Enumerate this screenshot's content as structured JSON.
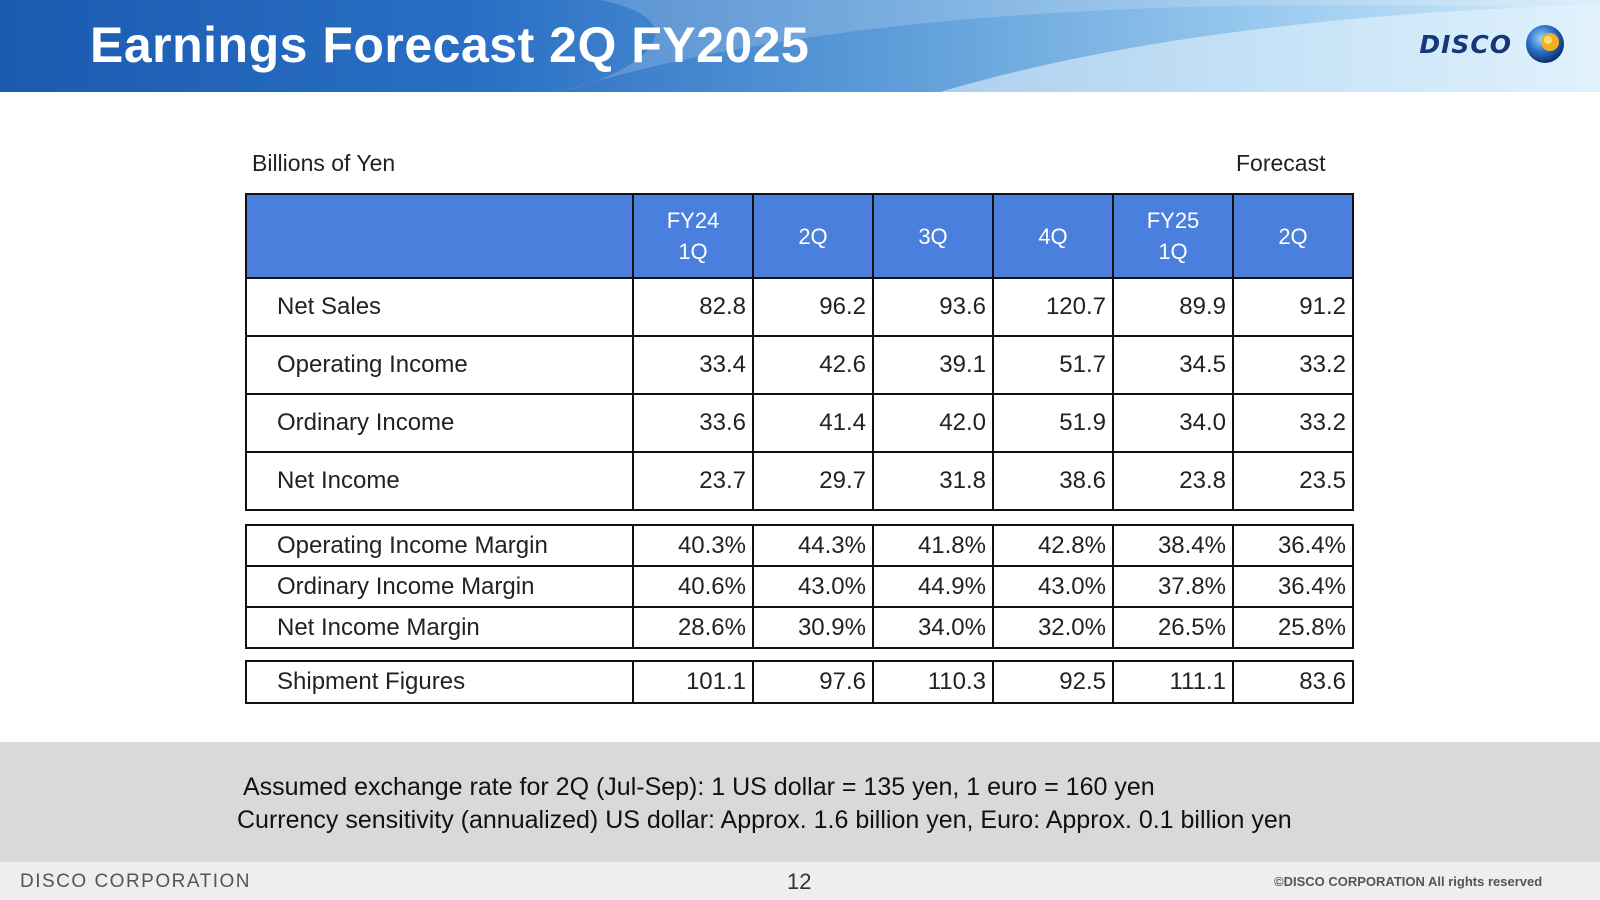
{
  "header": {
    "title": "Earnings Forecast 2Q FY2025",
    "logo_text": "DISCO",
    "logo_icon": "disco-globe-logo-icon"
  },
  "table": {
    "units": "Billions of Yen",
    "forecast_label": "Forecast",
    "columns": [
      {
        "line1": "FY24",
        "line2": "1Q"
      },
      {
        "line1": "2Q",
        "line2": ""
      },
      {
        "line1": "3Q",
        "line2": ""
      },
      {
        "line1": "4Q",
        "line2": ""
      },
      {
        "line1": "FY25",
        "line2": "1Q"
      },
      {
        "line1": "2Q",
        "line2": ""
      }
    ],
    "main_rows": [
      {
        "label": "Net Sales",
        "values": [
          "82.8",
          "96.2",
          "93.6",
          "120.7",
          "89.9",
          "91.2"
        ]
      },
      {
        "label": "Operating Income",
        "values": [
          "33.4",
          "42.6",
          "39.1",
          "51.7",
          "34.5",
          "33.2"
        ]
      },
      {
        "label": "Ordinary Income",
        "values": [
          "33.6",
          "41.4",
          "42.0",
          "51.9",
          "34.0",
          "33.2"
        ]
      },
      {
        "label": "Net Income",
        "values": [
          "23.7",
          "29.7",
          "31.8",
          "38.6",
          "23.8",
          "23.5"
        ]
      }
    ],
    "margin_rows": [
      {
        "label": "Operating Income Margin",
        "values": [
          "40.3%",
          "44.3%",
          "41.8%",
          "42.8%",
          "38.4%",
          "36.4%"
        ]
      },
      {
        "label": "Ordinary Income Margin",
        "values": [
          "40.6%",
          "43.0%",
          "44.9%",
          "43.0%",
          "37.8%",
          "36.4%"
        ]
      },
      {
        "label": "Net Income Margin",
        "values": [
          "28.6%",
          "30.9%",
          "34.0%",
          "32.0%",
          "26.5%",
          "25.8%"
        ]
      }
    ],
    "shipment_row": {
      "label": "Shipment Figures",
      "values": [
        "101.1",
        "97.6",
        "110.3",
        "92.5",
        "111.1",
        "83.6"
      ]
    }
  },
  "notes": {
    "line1": "Assumed exchange rate for 2Q (Jul-Sep): 1 US dollar = 135 yen, 1 euro = 160 yen",
    "line2": "Currency sensitivity (annualized) US dollar: Approx. 1.6 billion yen, Euro: Approx. 0.1 billion yen"
  },
  "footer": {
    "company": "DISCO CORPORATION",
    "page_number": "12",
    "copyright": "©DISCO CORPORATION   All rights reserved"
  },
  "colors": {
    "header_blue": "#1a5bb0",
    "table_header_blue": "#4a7fdd",
    "note_band_gray": "#d9d9d9"
  }
}
